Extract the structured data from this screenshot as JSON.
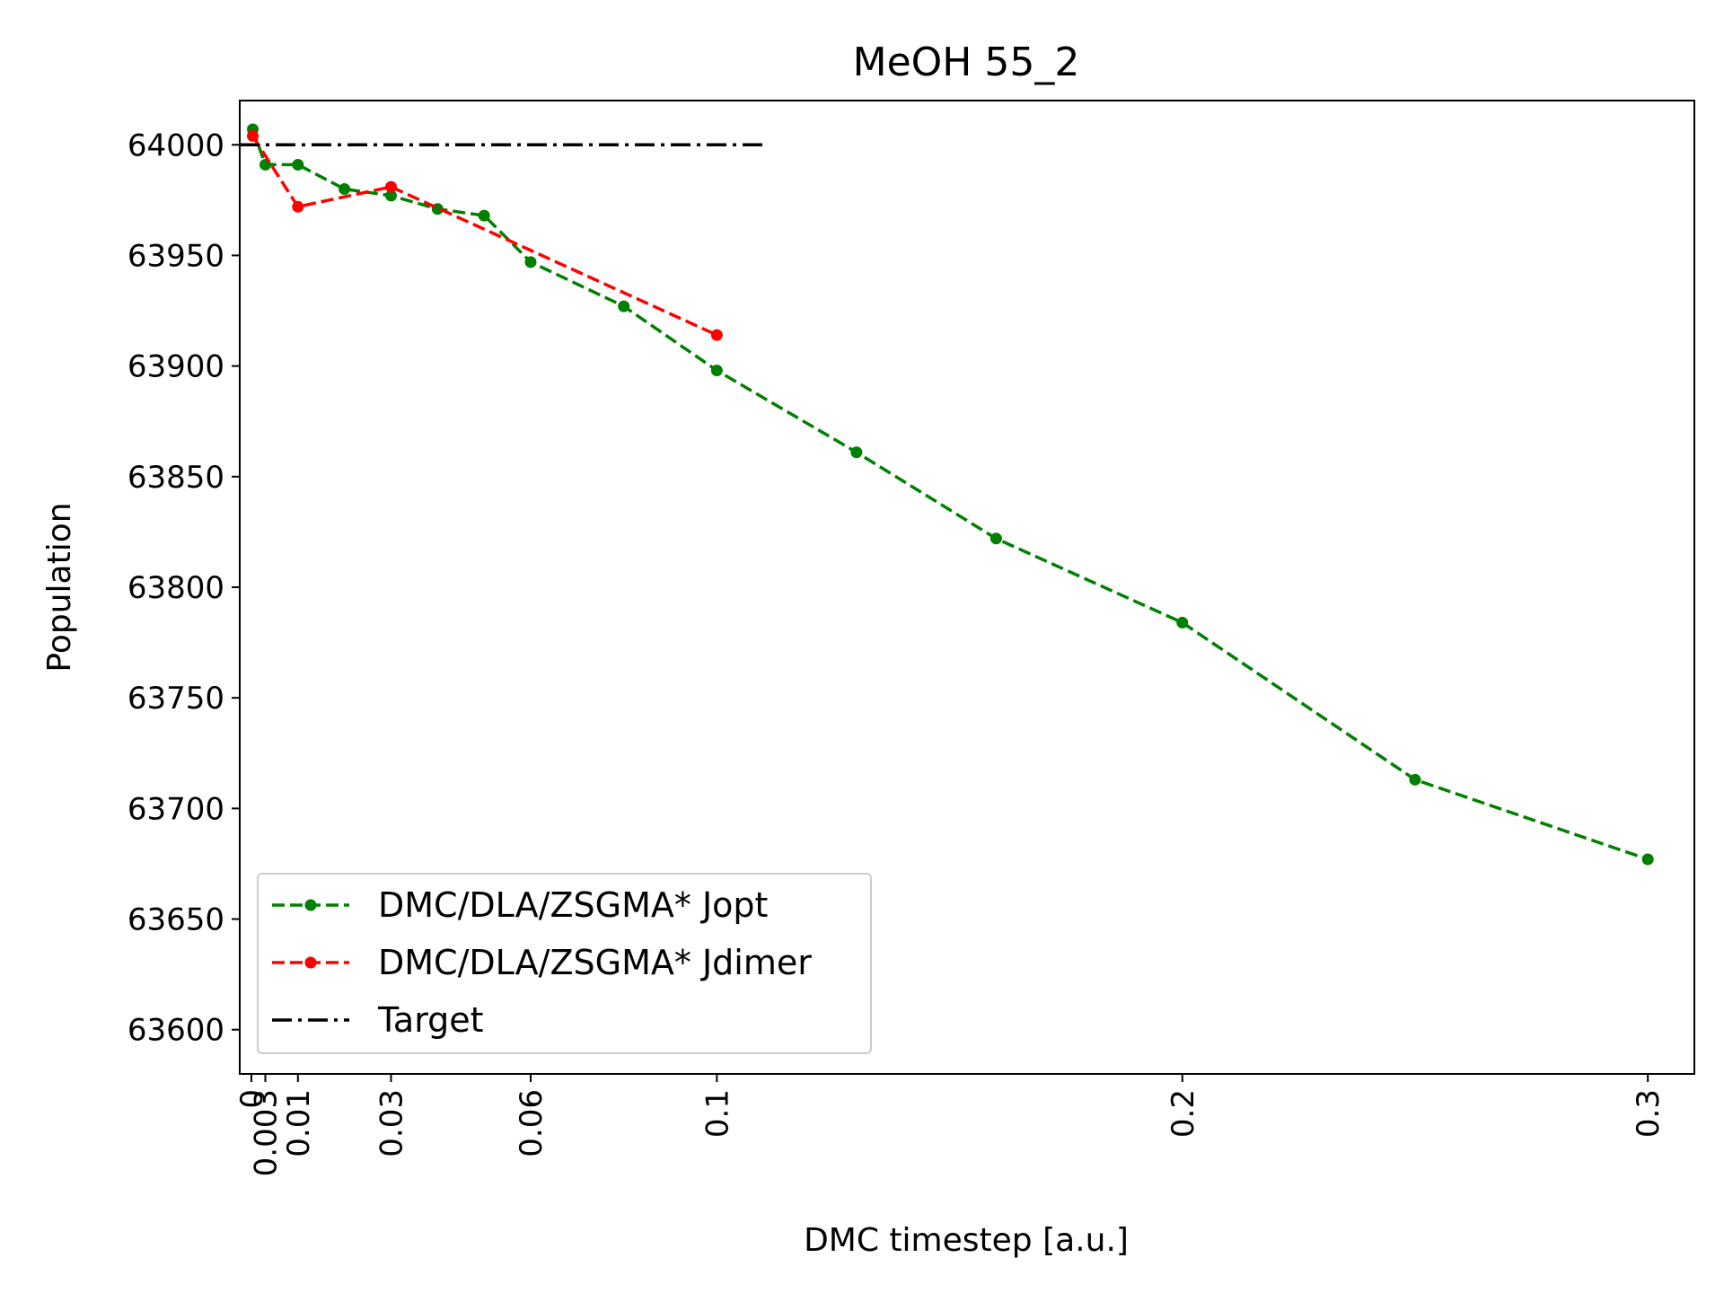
{
  "chart_data": {
    "type": "line",
    "title": "MeOH 55_2",
    "xlabel": "DMC timestep [a.u.]",
    "ylabel": "Population",
    "xlim": [
      -0.0025,
      0.31
    ],
    "ylim": [
      63580,
      64020
    ],
    "xticks": [
      0,
      0.003,
      0.01,
      0.03,
      0.06,
      0.1,
      0.2,
      0.3
    ],
    "xtick_labels": [
      "0",
      "0.003",
      "0.01",
      "0.03",
      "0.06",
      "0.1",
      "0.2",
      "0.3"
    ],
    "yticks": [
      63600,
      63650,
      63700,
      63750,
      63800,
      63850,
      63900,
      63950,
      64000
    ],
    "ytick_labels": [
      "63600",
      "63650",
      "63700",
      "63750",
      "63800",
      "63850",
      "63900",
      "63950",
      "64000"
    ],
    "grid": false,
    "legend_position": "lower-left",
    "series": [
      {
        "name": "DMC/DLA/ZSGMA* Jopt",
        "color": "#008000",
        "line_style": "dashed",
        "marker": "circle",
        "x": [
          0.0003,
          0.003,
          0.01,
          0.02,
          0.03,
          0.04,
          0.05,
          0.06,
          0.08,
          0.1,
          0.13,
          0.16,
          0.2,
          0.25,
          0.3
        ],
        "y": [
          64007,
          63991,
          63991,
          63980,
          63977,
          63971,
          63968,
          63947,
          63927,
          63898,
          63861,
          63822,
          63784,
          63713,
          63677
        ]
      },
      {
        "name": "DMC/DLA/ZSGMA* Jdimer",
        "color": "#ff0000",
        "line_style": "dashed",
        "marker": "circle",
        "x": [
          0.0003,
          0.01,
          0.03,
          0.1
        ],
        "y": [
          64004,
          63972,
          63981,
          63914
        ]
      },
      {
        "name": "Target",
        "color": "#000000",
        "line_style": "dashdot",
        "marker": "none",
        "x": [
          -0.0025,
          0.11
        ],
        "y": [
          64000,
          64000
        ]
      }
    ]
  }
}
